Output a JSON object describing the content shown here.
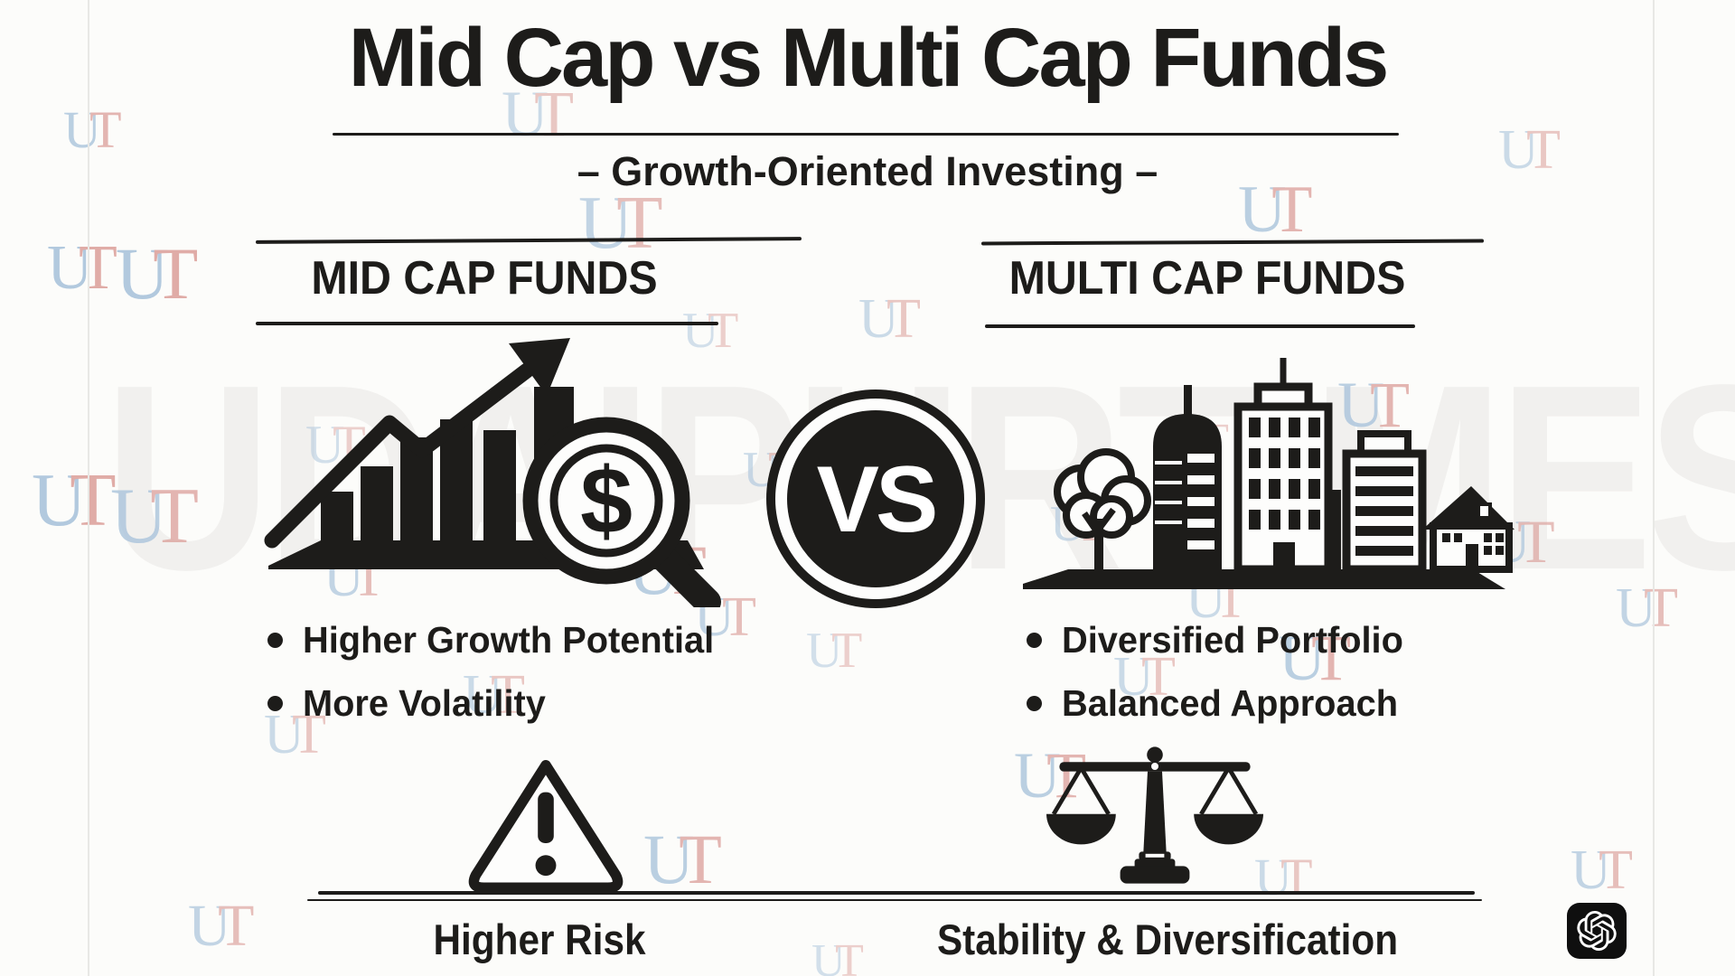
{
  "header": {
    "title": "Mid Cap vs Multi Cap Funds",
    "subtitle": "– Growth-Oriented Investing –"
  },
  "versus": {
    "label": "VS"
  },
  "left_column": {
    "header": "MID CAP FUNDS",
    "icon": "bar-chart-growth-arrow-dollar-magnifier",
    "magnifier_symbol": "$",
    "bullets": [
      "Higher Growth Potential",
      "More Volatility"
    ],
    "footer_icon": "warning-triangle",
    "footer_label": "Higher Risk"
  },
  "right_column": {
    "header": "MULTI CAP FUNDS",
    "icon": "city-skyline-buildings-tree-house",
    "bullets": [
      "Diversified Portfolio",
      "Balanced Approach"
    ],
    "footer_icon": "balance-scale",
    "footer_label": "Stability & Diversification"
  },
  "watermarks": {
    "big_text": "UDAIPURTIMES",
    "small_text": "UT"
  },
  "branding": {
    "logo_icon": "openai-logo"
  },
  "colors": {
    "ink": "#1d1c1a",
    "background": "#fcfcfa",
    "big_watermark": "#f1f0ee",
    "watermark_blue": "#aac4dc",
    "watermark_red": "#dda49f",
    "logo_badge": "#0f0f0f"
  }
}
